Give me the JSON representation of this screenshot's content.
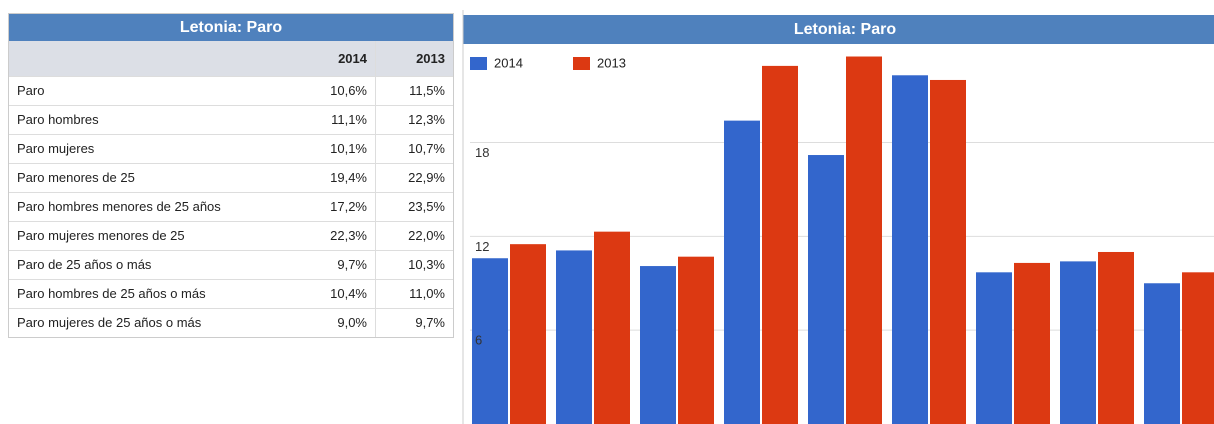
{
  "table": {
    "title": "Letonia: Paro",
    "columns": [
      "2014",
      "2013"
    ],
    "rows": [
      [
        "Paro",
        "10,6%",
        "11,5%"
      ],
      [
        "Paro hombres",
        "11,1%",
        "12,3%"
      ],
      [
        "Paro mujeres",
        "10,1%",
        "10,7%"
      ],
      [
        "Paro menores de 25",
        "19,4%",
        "22,9%"
      ],
      [
        "Paro hombres menores de 25 años",
        "17,2%",
        "23,5%"
      ],
      [
        "Paro mujeres menores de 25",
        "22,3%",
        "22,0%"
      ],
      [
        "Paro de 25 años o más",
        "9,7%",
        "10,3%"
      ],
      [
        "Paro hombres de 25 años o más",
        "10,4%",
        "11,0%"
      ],
      [
        "Paro mujeres de 25 años o más",
        "9,0%",
        "9,7%"
      ]
    ]
  },
  "chart_data": {
    "type": "bar",
    "title": "Letonia: Paro",
    "categories": [
      null,
      null,
      null,
      null,
      null,
      null,
      null,
      null,
      null
    ],
    "series": [
      {
        "name": "2014",
        "color": "#3366cc",
        "values": [
          10.6,
          11.1,
          10.1,
          19.4,
          17.2,
          22.3,
          9.7,
          10.4,
          9.0
        ]
      },
      {
        "name": "2013",
        "color": "#dc3912",
        "values": [
          11.5,
          12.3,
          10.7,
          22.9,
          23.5,
          22.0,
          10.3,
          11.0,
          9.7
        ]
      }
    ],
    "ylim": [
      0,
      24.3
    ],
    "yticks": [
      6,
      12,
      18
    ],
    "grid": true,
    "legend": "top-left"
  }
}
